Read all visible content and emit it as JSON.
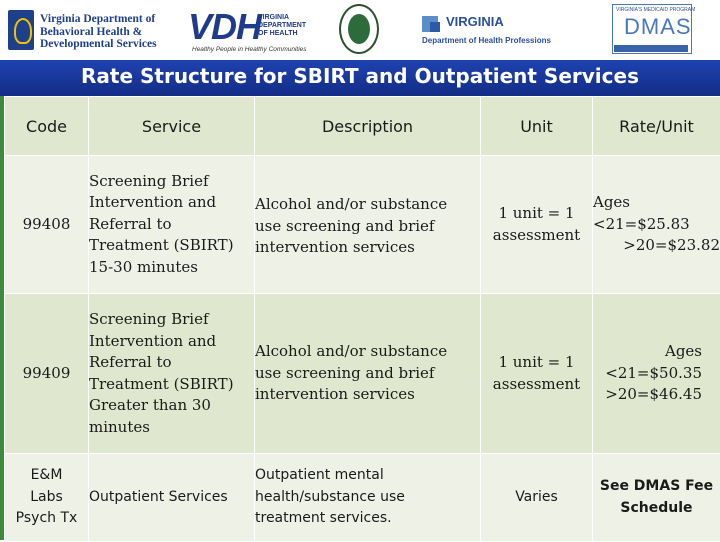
{
  "header_logos": {
    "dbhds": {
      "line1": "Virginia Department of",
      "line2": "Behavioral Health &",
      "line3": "Developmental Services"
    },
    "vdh": {
      "mark": "VDH",
      "name_line1": "VIRGINIA",
      "name_line2": "DEPARTMENT",
      "name_line3": "OF HEALTH",
      "tagline": "Healthy People in Healthy Communities"
    },
    "dhp": {
      "name": "VIRGINIA",
      "subtitle": "Department of Health Professions"
    },
    "dmas": {
      "top": "VIRGINIA'S MEDICAID PROGRAM",
      "mark": "DMAS"
    }
  },
  "title": "Rate Structure for SBIRT and Outpatient Services",
  "table": {
    "headers": [
      "Code",
      "Service",
      "Description",
      "Unit",
      "Rate/Unit"
    ],
    "rows": [
      {
        "code": [
          "99408"
        ],
        "service": [
          "Screening Brief",
          "Intervention and",
          "Referral to",
          "Treatment (SBIRT)",
          "15-30 minutes"
        ],
        "description": [
          "Alcohol and/or substance",
          "use screening and brief",
          "intervention services"
        ],
        "unit": [
          "1 unit = 1",
          "assessment"
        ],
        "rate": [
          "Ages",
          "<21=$25.83",
          ">20=$23.82"
        ]
      },
      {
        "code": [
          "99409"
        ],
        "service": [
          "Screening Brief",
          "Intervention and",
          "Referral to",
          "Treatment (SBIRT)",
          "Greater than 30",
          "minutes"
        ],
        "description": [
          "Alcohol and/or substance",
          "use screening and brief",
          "intervention services"
        ],
        "unit": [
          "1 unit = 1",
          "assessment"
        ],
        "rate": [
          "Ages",
          "<21=$50.35",
          ">20=$46.45"
        ]
      },
      {
        "code": [
          "E&M",
          "Labs",
          "Psych Tx"
        ],
        "service": [
          "Outpatient Services"
        ],
        "description": [
          "Outpatient mental",
          "health/substance use",
          "treatment services."
        ],
        "unit": [
          "Varies"
        ],
        "rate": [
          "See DMAS Fee",
          "Schedule"
        ]
      }
    ]
  }
}
